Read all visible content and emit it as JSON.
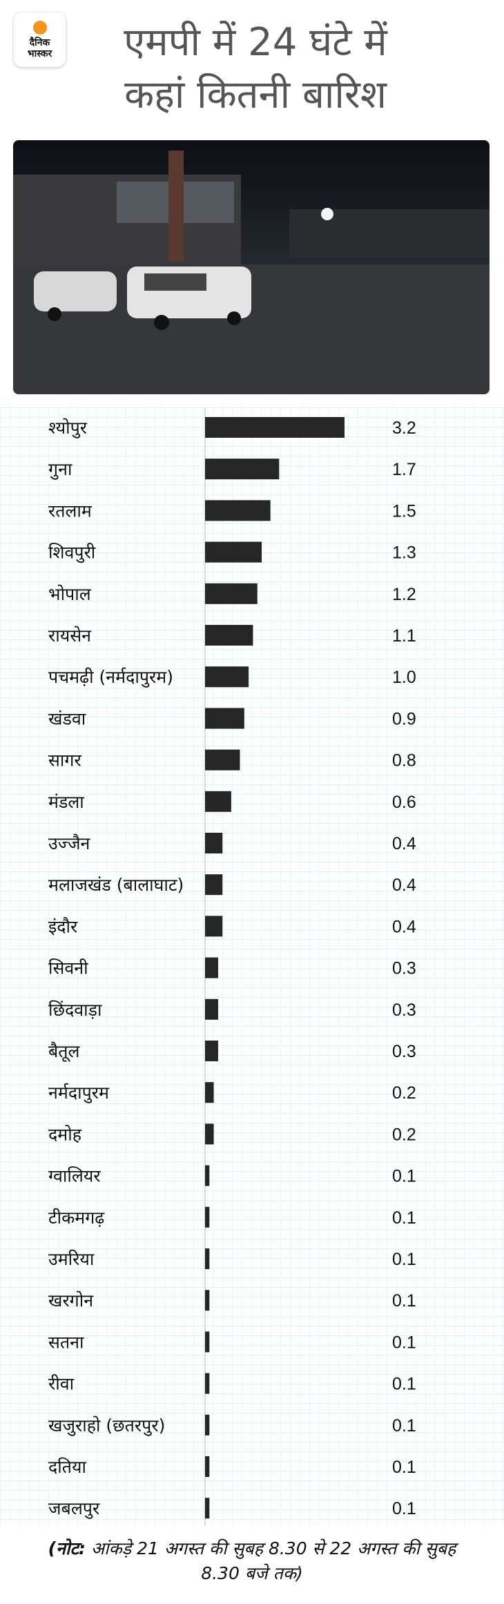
{
  "logo": {
    "line1": "दैनिक",
    "line2": "भास्कर"
  },
  "title": {
    "line1": "एमपी में 24 घंटे में",
    "line2": "कहां कितनी बारिश"
  },
  "note": {
    "prefix": "(नोट:",
    "text": " आंकड़े 21 अगस्त की सुबह 8.30 से 22 अगस्त की सुबह 8.30 बजे तक)"
  },
  "colors": {
    "bar": "#262626",
    "axis": "#bbbbbb",
    "brand": "#f7941d"
  },
  "chart_data": {
    "type": "bar",
    "orientation": "horizontal",
    "title": "एमपी में 24 घंटे में कहां कितनी बारिश",
    "categories": [
      "श्योपुर",
      "गुना",
      "रतलाम",
      "शिवपुरी",
      "भोपाल",
      "रायसेन",
      "पचमढ़ी (नर्मदापुरम)",
      "खंडवा",
      "सागर",
      "मंडला",
      "उज्जैन",
      "मलाजखंड (बालाघाट)",
      "इंदौर",
      "सिवनी",
      "छिंदवाड़ा",
      "बैतूल",
      "नर्मदापुरम",
      "दमोह",
      "ग्वालियर",
      "टीकमगढ़",
      "उमरिया",
      "खरगोन",
      "सतना",
      "रीवा",
      "खजुराहो (छतरपुर)",
      "दतिया",
      "जबलपुर"
    ],
    "values": [
      3.2,
      1.7,
      1.5,
      1.3,
      1.2,
      1.1,
      1.0,
      0.9,
      0.8,
      0.6,
      0.4,
      0.4,
      0.4,
      0.3,
      0.3,
      0.3,
      0.2,
      0.2,
      0.1,
      0.1,
      0.1,
      0.1,
      0.1,
      0.1,
      0.1,
      0.1,
      0.1
    ],
    "value_labels": [
      "3.2",
      "1.7",
      "1.5",
      "1.3",
      "1.2",
      "1.1",
      "1.0",
      "0.9",
      "0.8",
      "0.6",
      "0.4",
      "0.4",
      "0.4",
      "0.3",
      "0.3",
      "0.3",
      "0.2",
      "0.2",
      "0.1",
      "0.1",
      "0.1",
      "0.1",
      "0.1",
      "0.1",
      "0.1",
      "0.1",
      "0.1"
    ],
    "xlim": [
      0,
      3.2
    ],
    "grid": true
  }
}
